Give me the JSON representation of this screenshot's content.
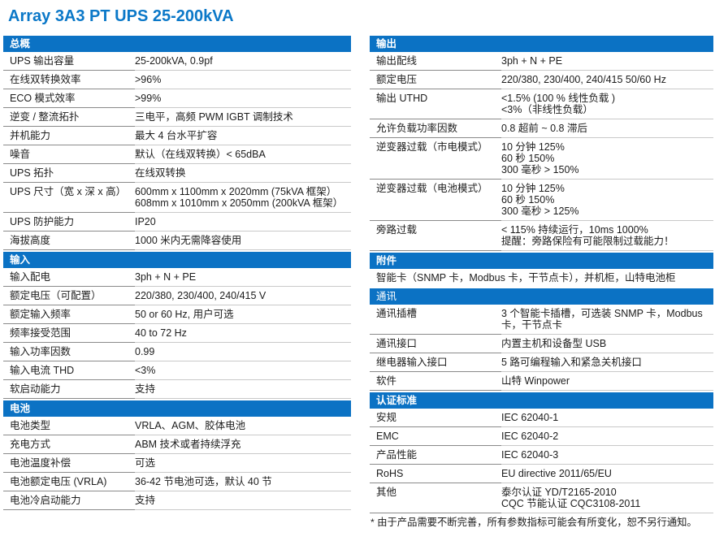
{
  "page": {
    "title": "Array 3A3 PT UPS 25-200kVA",
    "footnote": "* 由于产品需要不断完善，所有参数指标可能会有所变化，恕不另行通知。",
    "accent_color": "#0b72c4"
  },
  "columns": {
    "left": [
      {
        "header": "总概",
        "rows": [
          {
            "label": "UPS 输出容量",
            "value": [
              "25-200kVA, 0.9pf"
            ]
          },
          {
            "label": "在线双转换效率",
            "value": [
              ">96%"
            ]
          },
          {
            "label": "ECO 模式效率",
            "value": [
              ">99%"
            ]
          },
          {
            "label": "逆变 / 整流拓扑",
            "value": [
              "三电平，高频 PWM IGBT 调制技术"
            ]
          },
          {
            "label": "并机能力",
            "value": [
              "最大 4 台水平扩容"
            ]
          },
          {
            "label": "噪音",
            "value": [
              "默认（在线双转换）< 65dBA"
            ]
          },
          {
            "label": "UPS 拓扑",
            "value": [
              "在线双转换"
            ]
          },
          {
            "label": "UPS 尺寸（宽 x 深 x 高）",
            "value": [
              "600mm x 1100mm x 2020mm (75kVA 框架）",
              "608mm x 1010mm x 2050mm (200kVA 框架）"
            ]
          },
          {
            "label": "UPS 防护能力",
            "value": [
              "IP20"
            ]
          },
          {
            "label": "海拔高度",
            "value": [
              "1000 米内无需降容使用"
            ]
          }
        ]
      },
      {
        "header": "输入",
        "rows": [
          {
            "label": "输入配电",
            "value": [
              "3ph + N + PE"
            ]
          },
          {
            "label": "额定电压（可配置）",
            "value": [
              "220/380, 230/400, 240/415 V"
            ]
          },
          {
            "label": "额定输入频率",
            "value": [
              "50 or 60 Hz, 用户可选"
            ]
          },
          {
            "label": "频率接受范围",
            "value": [
              "40 to 72 Hz"
            ]
          },
          {
            "label": "输入功率因数",
            "value": [
              "0.99"
            ]
          },
          {
            "label": "输入电流 THD",
            "value": [
              "<3%"
            ]
          },
          {
            "label": "软启动能力",
            "value": [
              "支持"
            ]
          }
        ]
      },
      {
        "header": "电池",
        "rows": [
          {
            "label": "电池类型",
            "value": [
              "VRLA、AGM、胶体电池"
            ]
          },
          {
            "label": "充电方式",
            "value": [
              "ABM 技术或者持续浮充"
            ]
          },
          {
            "label": "电池温度补偿",
            "value": [
              "可选"
            ]
          },
          {
            "label": "电池额定电压 (VRLA)",
            "value": [
              "36-42 节电池可选，默认 40 节"
            ]
          },
          {
            "label": "电池冷启动能力",
            "value": [
              "支持"
            ]
          }
        ]
      }
    ],
    "right": [
      {
        "header": "输出",
        "rows": [
          {
            "label": "输出配线",
            "value": [
              "3ph + N + PE"
            ]
          },
          {
            "label": "额定电压",
            "value": [
              "220/380, 230/400, 240/415 50/60 Hz"
            ]
          },
          {
            "label": "输出 UTHD",
            "value": [
              "<1.5% (100 % 线性负载 )",
              "<3%（非线性负载）"
            ]
          },
          {
            "label": "允许负载功率因数",
            "value": [
              "0.8 超前 ~ 0.8 滞后"
            ]
          },
          {
            "label": "逆变器过载（市电模式）",
            "value": [
              "10 分钟 125%",
              "60 秒 150%",
              "300 毫秒 > 150%"
            ]
          },
          {
            "label": "逆变器过载（电池模式）",
            "value": [
              "10 分钟 125%",
              "60 秒 150%",
              "300 毫秒 > 125%"
            ]
          },
          {
            "label": "旁路过载",
            "value": [
              "< 115% 持续运行，10ms 1000%",
              "提醒：旁路保险有可能限制过载能力！"
            ]
          }
        ]
      },
      {
        "header": "附件",
        "rows": [
          {
            "full": "智能卡（SNMP 卡，Modbus 卡，干节点卡），并机柜，山特电池柜"
          }
        ]
      },
      {
        "header": "通讯",
        "header_bold": false,
        "rows": [
          {
            "label": "通讯插槽",
            "value": [
              "3 个智能卡插槽，可选装 SNMP 卡，Modbus",
              "卡，干节点卡"
            ]
          },
          {
            "label": "通讯接口",
            "value": [
              "内置主机和设备型 USB"
            ]
          },
          {
            "label": "继电器输入接口",
            "value": [
              "5 路可编程输入和紧急关机接口"
            ]
          },
          {
            "label": "软件",
            "value": [
              "山特 Winpower"
            ]
          }
        ]
      },
      {
        "header": "认证标准",
        "rows": [
          {
            "label": "安规",
            "value": [
              "IEC 62040-1"
            ]
          },
          {
            "label": "EMC",
            "value": [
              "IEC 62040-2"
            ]
          },
          {
            "label": "产品性能",
            "value": [
              "IEC 62040-3"
            ]
          },
          {
            "label": "RoHS",
            "value": [
              "EU directive 2011/65/EU"
            ]
          },
          {
            "label": "其他",
            "value": [
              "泰尔认证 YD/T2165-2010",
              "CQC 节能认证 CQC3108-2011"
            ]
          }
        ]
      }
    ]
  }
}
